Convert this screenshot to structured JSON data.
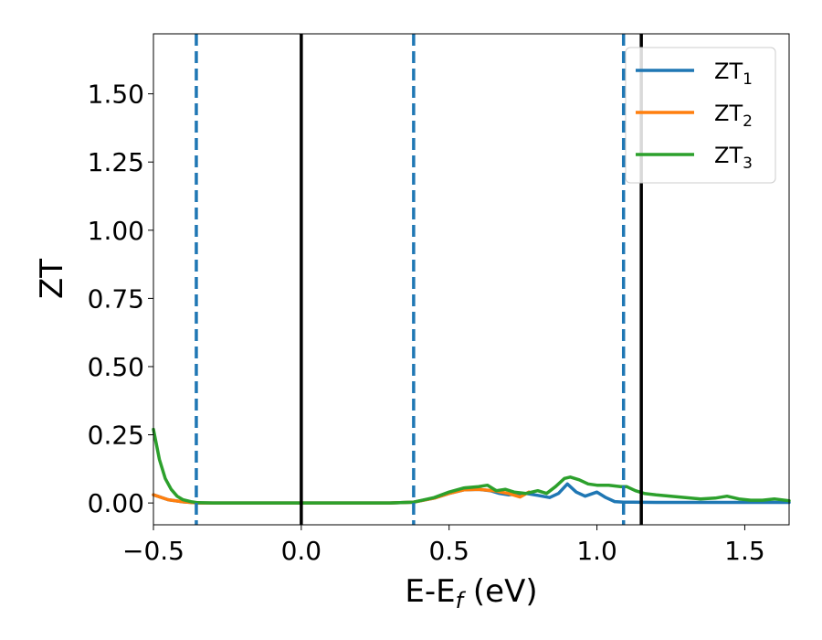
{
  "chart_data": {
    "type": "line",
    "title": "",
    "xlabel": "E-E",
    "xlabel_sub": "f",
    "xlabel_unit": " (eV)",
    "ylabel": "ZT",
    "xlim": [
      -0.5,
      1.65
    ],
    "ylim": [
      -0.08,
      1.72
    ],
    "xticks": [
      -0.5,
      0.0,
      0.5,
      1.0,
      1.5
    ],
    "xtick_labels": [
      "−0.5",
      "0.0",
      "0.5",
      "1.0",
      "1.5"
    ],
    "yticks": [
      0.0,
      0.25,
      0.5,
      0.75,
      1.0,
      1.25,
      1.5
    ],
    "ytick_labels": [
      "0.00",
      "0.25",
      "0.50",
      "0.75",
      "1.00",
      "1.25",
      "1.50"
    ],
    "grid": false,
    "legend_position": "top-right",
    "vlines_solid": [
      0.0,
      1.15
    ],
    "vlines_dashed": [
      -0.355,
      0.38,
      1.09
    ],
    "vline_solid_color": "#000000",
    "vline_dashed_color": "#1f77b4",
    "series": [
      {
        "name": "ZT",
        "name_sub": "1",
        "color": "#1f77b4",
        "x": [
          -0.5,
          -0.45,
          -0.4,
          -0.35,
          -0.3,
          0.0,
          0.3,
          0.38,
          0.45,
          0.5,
          0.55,
          0.6,
          0.64,
          0.67,
          0.7,
          0.73,
          0.76,
          0.8,
          0.84,
          0.87,
          0.9,
          0.93,
          0.96,
          1.0,
          1.03,
          1.06,
          1.09,
          1.12,
          1.2,
          1.3,
          1.4,
          1.5,
          1.65
        ],
        "y": [
          0.03,
          0.012,
          0.004,
          0.0,
          0.0,
          0.0,
          0.0,
          0.003,
          0.018,
          0.035,
          0.048,
          0.05,
          0.045,
          0.035,
          0.03,
          0.033,
          0.035,
          0.028,
          0.02,
          0.035,
          0.07,
          0.04,
          0.025,
          0.04,
          0.02,
          0.005,
          0.003,
          0.003,
          0.002,
          0.002,
          0.002,
          0.002,
          0.002
        ]
      },
      {
        "name": "ZT",
        "name_sub": "2",
        "color": "#ff7f0e",
        "x": [
          -0.5,
          -0.45,
          -0.4,
          -0.35,
          -0.3,
          0.0,
          0.3,
          0.38,
          0.45,
          0.5,
          0.55,
          0.6,
          0.65,
          0.7,
          0.74,
          0.77
        ],
        "y": [
          0.03,
          0.012,
          0.004,
          0.0,
          0.0,
          0.0,
          0.0,
          0.003,
          0.018,
          0.035,
          0.048,
          0.05,
          0.045,
          0.035,
          0.022,
          0.04
        ]
      },
      {
        "name": "ZT",
        "name_sub": "3",
        "color": "#2ca02c",
        "x": [
          -0.5,
          -0.48,
          -0.46,
          -0.44,
          -0.42,
          -0.4,
          -0.37,
          -0.35,
          -0.3,
          0.0,
          0.3,
          0.38,
          0.45,
          0.5,
          0.55,
          0.6,
          0.63,
          0.66,
          0.69,
          0.72,
          0.76,
          0.8,
          0.83,
          0.86,
          0.89,
          0.91,
          0.94,
          0.97,
          1.0,
          1.04,
          1.08,
          1.1,
          1.13,
          1.16,
          1.2,
          1.25,
          1.3,
          1.35,
          1.4,
          1.44,
          1.48,
          1.52,
          1.56,
          1.6,
          1.65
        ],
        "y": [
          0.27,
          0.16,
          0.09,
          0.05,
          0.025,
          0.012,
          0.004,
          0.001,
          0.0,
          0.0,
          0.0,
          0.003,
          0.02,
          0.04,
          0.055,
          0.06,
          0.065,
          0.045,
          0.05,
          0.04,
          0.035,
          0.045,
          0.035,
          0.06,
          0.09,
          0.095,
          0.085,
          0.07,
          0.065,
          0.065,
          0.06,
          0.06,
          0.045,
          0.035,
          0.03,
          0.025,
          0.02,
          0.015,
          0.018,
          0.025,
          0.015,
          0.01,
          0.01,
          0.015,
          0.008
        ]
      }
    ]
  }
}
